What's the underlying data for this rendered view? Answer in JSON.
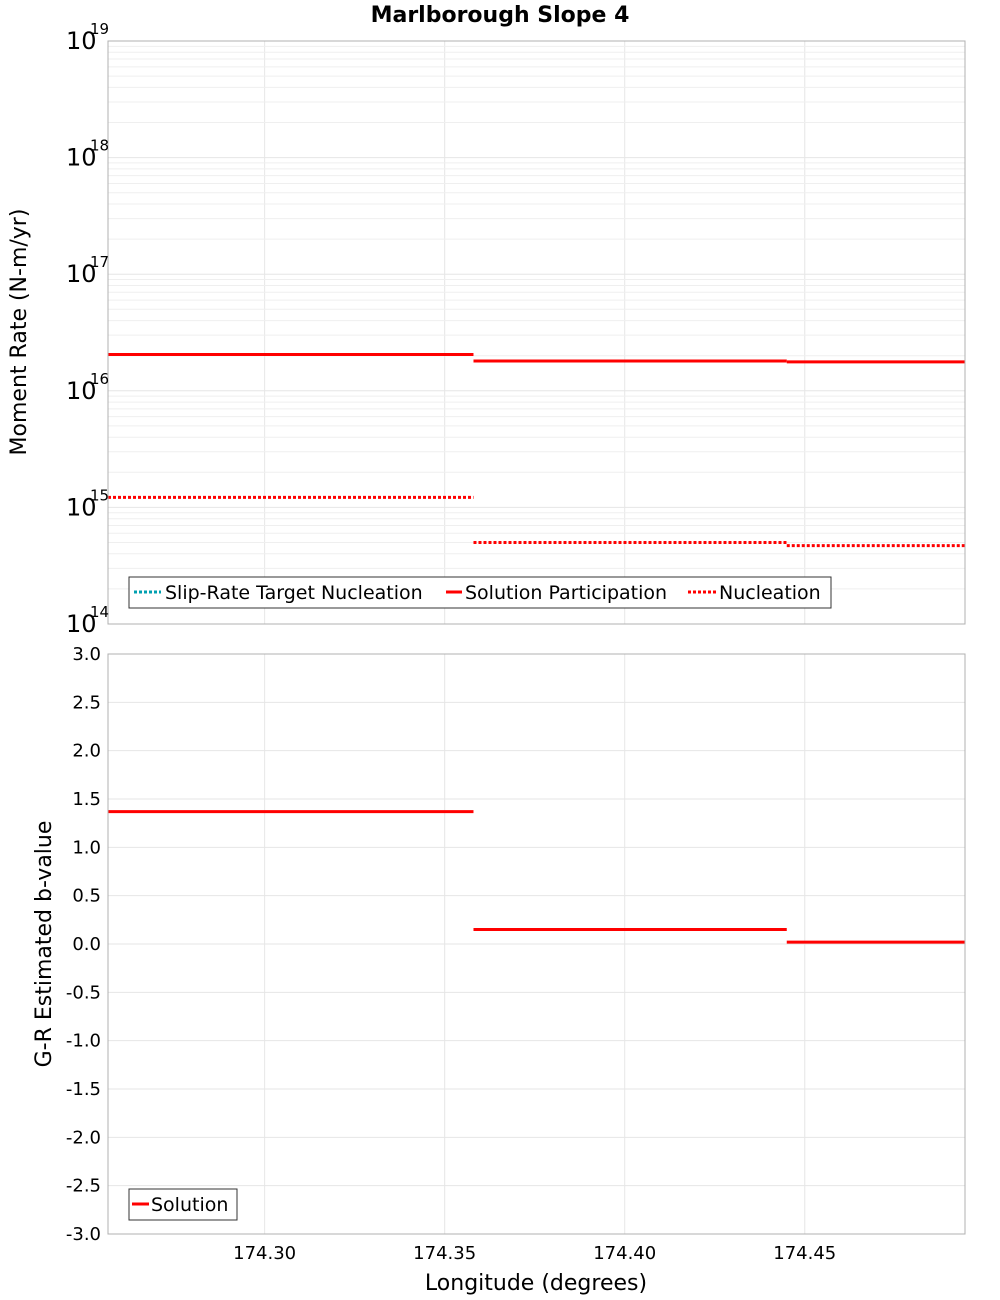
{
  "chart_data": [
    {
      "type": "line",
      "title": "Marlborough Slope 4",
      "xlabel": "",
      "ylabel": "Moment Rate (N-m/yr)",
      "yscale": "log",
      "xlim": [
        174.2565,
        174.4945
      ],
      "ylim_exponents": [
        14,
        19
      ],
      "y_tick_base": "10",
      "y_tick_exponents": [
        "14",
        "15",
        "16",
        "17",
        "18",
        "19"
      ],
      "grid": true,
      "legend_position": "bottom-left",
      "series": [
        {
          "name": "Slip-Rate Target Nucleation",
          "color": "#00a0b0",
          "style": "dotted",
          "segments": []
        },
        {
          "name": "Solution Participation",
          "color": "#ff0000",
          "style": "solid",
          "segments": [
            {
              "x0": 174.2565,
              "x1": 174.358,
              "y": 2.05e+16
            },
            {
              "x0": 174.358,
              "x1": 174.445,
              "y": 1.8e+16
            },
            {
              "x0": 174.445,
              "x1": 174.4945,
              "y": 1.77e+16
            }
          ]
        },
        {
          "name": "Nucleation",
          "color": "#ff0000",
          "style": "dotted",
          "segments": [
            {
              "x0": 174.2565,
              "x1": 174.358,
              "y": 1220000000000000.0
            },
            {
              "x0": 174.358,
              "x1": 174.445,
              "y": 500000000000000.0
            },
            {
              "x0": 174.445,
              "x1": 174.4945,
              "y": 470000000000000.0
            }
          ]
        }
      ]
    },
    {
      "type": "line",
      "title": "",
      "xlabel": "Longitude (degrees)",
      "ylabel": "G-R Estimated b-value",
      "xlim": [
        174.2565,
        174.4945
      ],
      "ylim": [
        -3.0,
        3.0
      ],
      "x_ticks": [
        174.3,
        174.35,
        174.4,
        174.45
      ],
      "x_tick_labels": [
        "174.30",
        "174.35",
        "174.40",
        "174.45"
      ],
      "y_ticks": [
        -3.0,
        -2.5,
        -2.0,
        -1.5,
        -1.0,
        -0.5,
        0.0,
        0.5,
        1.0,
        1.5,
        2.0,
        2.5,
        3.0
      ],
      "y_tick_labels": [
        "-3.0",
        "-2.5",
        "-2.0",
        "-1.5",
        "-1.0",
        "-0.5",
        "0.0",
        "0.5",
        "1.0",
        "1.5",
        "2.0",
        "2.5",
        "3.0"
      ],
      "grid": true,
      "legend_position": "bottom-left",
      "series": [
        {
          "name": "Solution",
          "color": "#ff0000",
          "style": "solid",
          "segments": [
            {
              "x0": 174.2565,
              "x1": 174.358,
              "y": 1.37
            },
            {
              "x0": 174.358,
              "x1": 174.445,
              "y": 0.15
            },
            {
              "x0": 174.445,
              "x1": 174.4945,
              "y": 0.02
            }
          ]
        }
      ]
    }
  ]
}
